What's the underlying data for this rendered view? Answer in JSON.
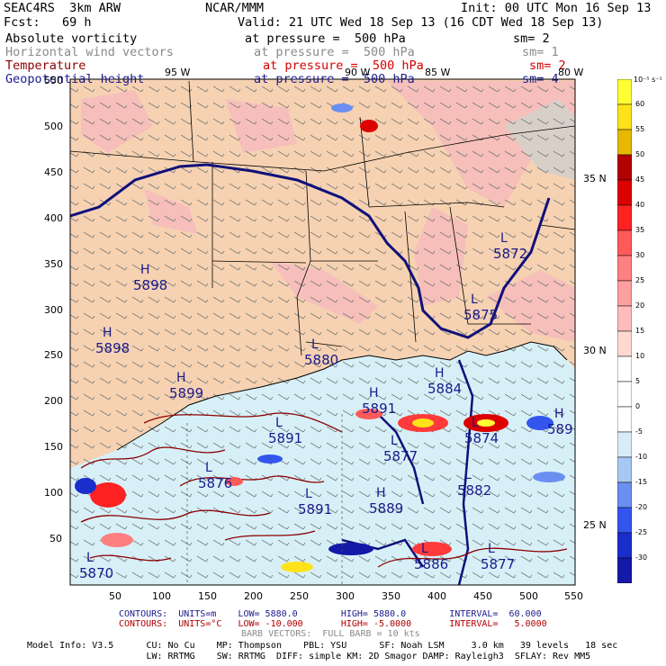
{
  "header": {
    "model": "SEAC4RS  3km ARW",
    "center": "NCAR/MMM",
    "init": "Init: 00 UTC Mon 16 Sep 13",
    "fcst": "Fcst:   69 h",
    "valid": "Valid: 21 UTC Wed 18 Sep 13 (16 CDT Wed 18 Sep 13)"
  },
  "fields": [
    {
      "name": "Absolute vorticity",
      "level": "at pressure =  500 hPa",
      "sm": "sm= 2",
      "color": "#000000"
    },
    {
      "name": "Horizontal wind vectors",
      "level": "at pressure =  500 hPa",
      "sm": "sm= 1",
      "color": "#8a8a8a"
    },
    {
      "name": "Temperature",
      "level": "at pressure =  500 hPa",
      "sm": "sm= 2",
      "color": "#8b0000"
    },
    {
      "name": "Geopotential height",
      "level": "at pressure =  500 hPa",
      "sm": "sm= 4",
      "color": "#1a1a8c"
    }
  ],
  "longitude_labels": [
    "95 W",
    "90 W",
    "85 W",
    "80 W"
  ],
  "latitude_labels": [
    "35 N",
    "30 N",
    "25 N"
  ],
  "x_ticks": [
    "50",
    "100",
    "150",
    "200",
    "250",
    "300",
    "350",
    "400",
    "450",
    "500",
    "550"
  ],
  "y_ticks": [
    "50",
    "100",
    "150",
    "200",
    "250",
    "300",
    "350",
    "400",
    "450",
    "500",
    "550"
  ],
  "pressure_labels": [
    {
      "kind": "H",
      "value": "5898"
    },
    {
      "kind": "H",
      "value": "5898"
    },
    {
      "kind": "L",
      "value": "5872"
    },
    {
      "kind": "L",
      "value": "5875"
    },
    {
      "kind": "L",
      "value": "5880"
    },
    {
      "kind": "H",
      "value": "5884"
    },
    {
      "kind": "H",
      "value": "5891"
    },
    {
      "kind": "L",
      "value": "5891"
    },
    {
      "kind": "L",
      "value": "5877"
    },
    {
      "kind": "L",
      "value": "5882"
    },
    {
      "kind": "H",
      "value": "5889"
    },
    {
      "kind": "L",
      "value": "5891"
    },
    {
      "kind": "L",
      "value": "5876"
    },
    {
      "kind": "L",
      "value": "5874"
    },
    {
      "kind": "H",
      "value": "5899"
    },
    {
      "kind": "L",
      "value": "5886"
    },
    {
      "kind": "L",
      "value": "5877"
    },
    {
      "kind": "H",
      "value": "589"
    },
    {
      "kind": "L",
      "value": "5870"
    }
  ],
  "colorbar": {
    "unit": "10⁻⁵ s⁻¹",
    "levels": [
      "60",
      "55",
      "50",
      "45",
      "40",
      "35",
      "30",
      "25",
      "20",
      "15",
      "10",
      "5",
      "0",
      "-5",
      "-10",
      "-15",
      "-20",
      "-25",
      "-30"
    ],
    "colors": [
      "#ffff33",
      "#ffe31a",
      "#e6b800",
      "#b30000",
      "#dd0000",
      "#ff2222",
      "#ff5a5a",
      "#ff8080",
      "#ffa0a0",
      "#ffbcbc",
      "#ffd9d0",
      "#ffffff",
      "#ffffff",
      "#ffffff",
      "#d8ecf8",
      "#a8c8f4",
      "#6a8ff0",
      "#3355ee",
      "#1a2ecc",
      "#1419a8"
    ]
  },
  "footer": {
    "line1": "CONTOURS:  UNITS=m    LOW= 5880.0        HIGH= 5880.0        INTERVAL=  60.000",
    "line2": "CONTOURS:  UNITS=°C   LOW= -10.000       HIGH= -5.0000       INTERVAL=   5.0000",
    "line3": "BARB VECTORS:  FULL BARB = 10 kts",
    "model_info_1": "Model Info: V3.5      CU: No Cu    MP: Thompson    PBL: YSU      SF: Noah LSM     3.0 km   39 levels   18 sec",
    "model_info_2": "                      LW: RRTMG    SW: RRTMG  DIFF: simple KM: 2D Smagor DAMP: Rayleigh3  SFLAY: Rev MM5"
  },
  "colors": {
    "land": "#f6d2b2",
    "gulf": "#d7f0f7",
    "height_contour": "#10107a",
    "temp_contour": "#8b0000"
  }
}
